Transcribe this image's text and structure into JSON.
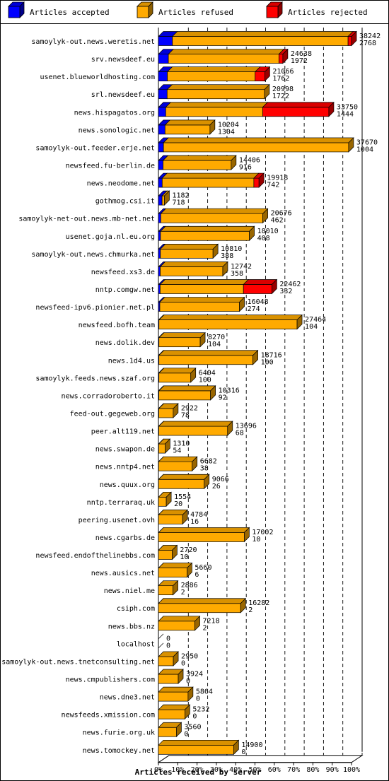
{
  "chart_data": {
    "type": "bar",
    "orientation": "horizontal",
    "stacked": true,
    "xlabel": "Articles received by server",
    "xlim": [
      0,
      100
    ],
    "x_unit": "%",
    "x_ticks": [
      "0%",
      "10%",
      "20%",
      "30%",
      "40%",
      "50%",
      "60%",
      "70%",
      "80%",
      "90%",
      "100%"
    ],
    "legend": {
      "placement": "top",
      "entries": [
        {
          "label": "Articles accepted",
          "color": "#0000ff"
        },
        {
          "label": "Articles refused",
          "color": "#ffaa00"
        },
        {
          "label": "Articles rejected",
          "color": "#ff0000"
        }
      ]
    },
    "max_total": 38242,
    "servers": [
      {
        "name": "samoylyk-out.news.weretis.net",
        "total": "38242",
        "accepted": "2768",
        "v": [
          2768,
          34789,
          685
        ]
      },
      {
        "name": "srv.newsdeef.eu",
        "total": "24638",
        "accepted": "1972",
        "v": [
          1972,
          21887,
          779
        ]
      },
      {
        "name": "usenet.blueworldhosting.com",
        "total": "21066",
        "accepted": "1762",
        "v": [
          1762,
          17391,
          1913
        ]
      },
      {
        "name": "srl.newsdeef.eu",
        "total": "20998",
        "accepted": "1722",
        "v": [
          1722,
          19276,
          0
        ]
      },
      {
        "name": "news.hispagatos.org",
        "total": "33750",
        "accepted": "1444",
        "v": [
          1444,
          19194,
          13112
        ]
      },
      {
        "name": "news.sonologic.net",
        "total": "10204",
        "accepted": "1304",
        "v": [
          1304,
          8900,
          0
        ]
      },
      {
        "name": "samoylyk-out.feeder.erje.net",
        "total": "37670",
        "accepted": "1004",
        "v": [
          1004,
          36666,
          0
        ]
      },
      {
        "name": "newsfeed.fu-berlin.de",
        "total": "14406",
        "accepted": "916",
        "v": [
          916,
          13490,
          0
        ]
      },
      {
        "name": "news.neodome.net",
        "total": "19918",
        "accepted": "742",
        "v": [
          742,
          18150,
          1026
        ]
      },
      {
        "name": "gothmog.csi.it",
        "total": "1182",
        "accepted": "718",
        "v": [
          718,
          464,
          0
        ]
      },
      {
        "name": "samoylyk-net-out.news.mb-net.net",
        "total": "20676",
        "accepted": "462",
        "v": [
          462,
          20214,
          0
        ]
      },
      {
        "name": "usenet.goja.nl.eu.org",
        "total": "18010",
        "accepted": "408",
        "v": [
          408,
          17602,
          0
        ]
      },
      {
        "name": "samoylyk-out.news.chmurka.net",
        "total": "10810",
        "accepted": "388",
        "v": [
          388,
          10422,
          0
        ]
      },
      {
        "name": "newsfeed.xs3.de",
        "total": "12742",
        "accepted": "358",
        "v": [
          358,
          12384,
          0
        ]
      },
      {
        "name": "nntp.comgw.net",
        "total": "22462",
        "accepted": "332",
        "v": [
          332,
          16508,
          5622
        ]
      },
      {
        "name": "newsfeed-ipv6.pionier.net.pl",
        "total": "16048",
        "accepted": "274",
        "v": [
          274,
          15774,
          0
        ]
      },
      {
        "name": "newsfeed.bofh.team",
        "total": "27464",
        "accepted": "104",
        "v": [
          104,
          27360,
          0
        ]
      },
      {
        "name": "news.dolik.dev",
        "total": "8270",
        "accepted": "104",
        "v": [
          104,
          8166,
          0
        ]
      },
      {
        "name": "news.1d4.us",
        "total": "18716",
        "accepted": "100",
        "v": [
          100,
          18616,
          0
        ]
      },
      {
        "name": "samoylyk.feeds.news.szaf.org",
        "total": "6404",
        "accepted": "100",
        "v": [
          100,
          6304,
          0
        ]
      },
      {
        "name": "news.corradoroberto.it",
        "total": "10316",
        "accepted": "92",
        "v": [
          92,
          10224,
          0
        ]
      },
      {
        "name": "feed-out.gegeweb.org",
        "total": "2922",
        "accepted": "78",
        "v": [
          78,
          2844,
          0
        ]
      },
      {
        "name": "peer.alt119.net",
        "total": "13696",
        "accepted": "68",
        "v": [
          68,
          13628,
          0
        ]
      },
      {
        "name": "news.swapon.de",
        "total": "1310",
        "accepted": "54",
        "v": [
          54,
          1256,
          0
        ]
      },
      {
        "name": "news.nntp4.net",
        "total": "6682",
        "accepted": "38",
        "v": [
          38,
          6644,
          0
        ]
      },
      {
        "name": "news.quux.org",
        "total": "9066",
        "accepted": "26",
        "v": [
          26,
          9040,
          0
        ]
      },
      {
        "name": "nntp.terraraq.uk",
        "total": "1554",
        "accepted": "20",
        "v": [
          20,
          1534,
          0
        ]
      },
      {
        "name": "peering.usenet.ovh",
        "total": "4784",
        "accepted": "16",
        "v": [
          16,
          4768,
          0
        ]
      },
      {
        "name": "news.cgarbs.de",
        "total": "17002",
        "accepted": "10",
        "v": [
          10,
          16992,
          0
        ]
      },
      {
        "name": "newsfeed.endofthelinebbs.com",
        "total": "2720",
        "accepted": "10",
        "v": [
          10,
          2710,
          0
        ]
      },
      {
        "name": "news.ausics.net",
        "total": "5660",
        "accepted": "6",
        "v": [
          6,
          5654,
          0
        ]
      },
      {
        "name": "news.niel.me",
        "total": "2886",
        "accepted": "2",
        "v": [
          2,
          2884,
          0
        ]
      },
      {
        "name": "csiph.com",
        "total": "16282",
        "accepted": "2",
        "v": [
          2,
          16280,
          0
        ]
      },
      {
        "name": "news.bbs.nz",
        "total": "7218",
        "accepted": "2",
        "v": [
          2,
          7216,
          0
        ]
      },
      {
        "name": "localhost",
        "total": "0",
        "accepted": "0",
        "v": [
          0,
          0,
          0
        ]
      },
      {
        "name": "samoylyk-out.news.tnetconsulting.net",
        "total": "2950",
        "accepted": "0",
        "v": [
          0,
          2950,
          0
        ]
      },
      {
        "name": "news.cmpublishers.com",
        "total": "3924",
        "accepted": "0",
        "v": [
          0,
          3924,
          0
        ]
      },
      {
        "name": "news.dne3.net",
        "total": "5864",
        "accepted": "0",
        "v": [
          0,
          5864,
          0
        ]
      },
      {
        "name": "newsfeeds.xmission.com",
        "total": "5232",
        "accepted": "0",
        "v": [
          0,
          5232,
          0
        ]
      },
      {
        "name": "news.furie.org.uk",
        "total": "3560",
        "accepted": "0",
        "v": [
          0,
          3560,
          0
        ]
      },
      {
        "name": "news.tomockey.net",
        "total": "14900",
        "accepted": "0",
        "v": [
          0,
          14900,
          0
        ]
      }
    ]
  }
}
